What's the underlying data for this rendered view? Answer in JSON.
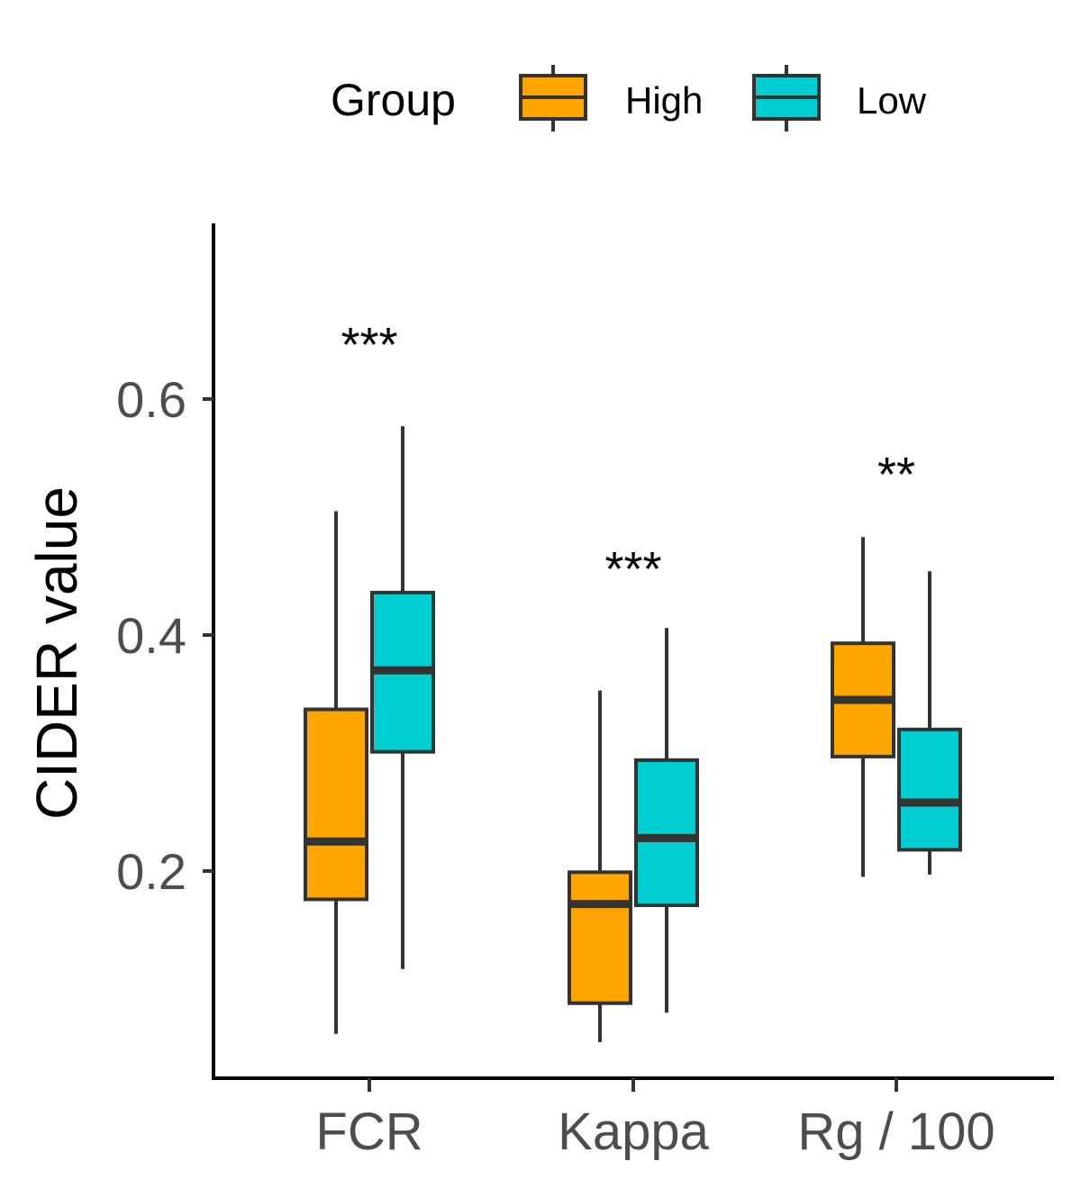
{
  "chart_data": {
    "type": "boxplot",
    "ylabel": "CIDER value",
    "xlabel": "",
    "categories": [
      "FCR",
      "Kappa",
      "Rg / 100"
    ],
    "ylim": [
      0.02,
      0.75
    ],
    "yticks": [
      0.2,
      0.4,
      0.6
    ],
    "ytick_labels": [
      "0.2",
      "0.4",
      "0.6"
    ],
    "grid": false,
    "legend": {
      "title": "Group",
      "position": "top",
      "entries": [
        "High",
        "Low"
      ]
    },
    "series": [
      {
        "name": "High",
        "color": "#FFA500",
        "boxes": [
          {
            "min": 0.062,
            "q1": 0.176,
            "median": 0.225,
            "q3": 0.337,
            "max": 0.505
          },
          {
            "min": 0.055,
            "q1": 0.088,
            "median": 0.172,
            "q3": 0.199,
            "max": 0.353
          },
          {
            "min": 0.195,
            "q1": 0.297,
            "median": 0.345,
            "q3": 0.393,
            "max": 0.483
          }
        ]
      },
      {
        "name": "Low",
        "color": "#00CED1",
        "boxes": [
          {
            "min": 0.117,
            "q1": 0.301,
            "median": 0.37,
            "q3": 0.436,
            "max": 0.577
          },
          {
            "min": 0.08,
            "q1": 0.171,
            "median": 0.228,
            "q3": 0.294,
            "max": 0.406
          },
          {
            "min": 0.197,
            "q1": 0.218,
            "median": 0.258,
            "q3": 0.32,
            "max": 0.454
          }
        ]
      }
    ],
    "annotations": [
      {
        "category": "FCR",
        "text": "***",
        "y": 0.655
      },
      {
        "category": "Kappa",
        "text": "***",
        "y": 0.465
      },
      {
        "category": "Rg / 100",
        "text": "**",
        "y": 0.545
      }
    ]
  }
}
